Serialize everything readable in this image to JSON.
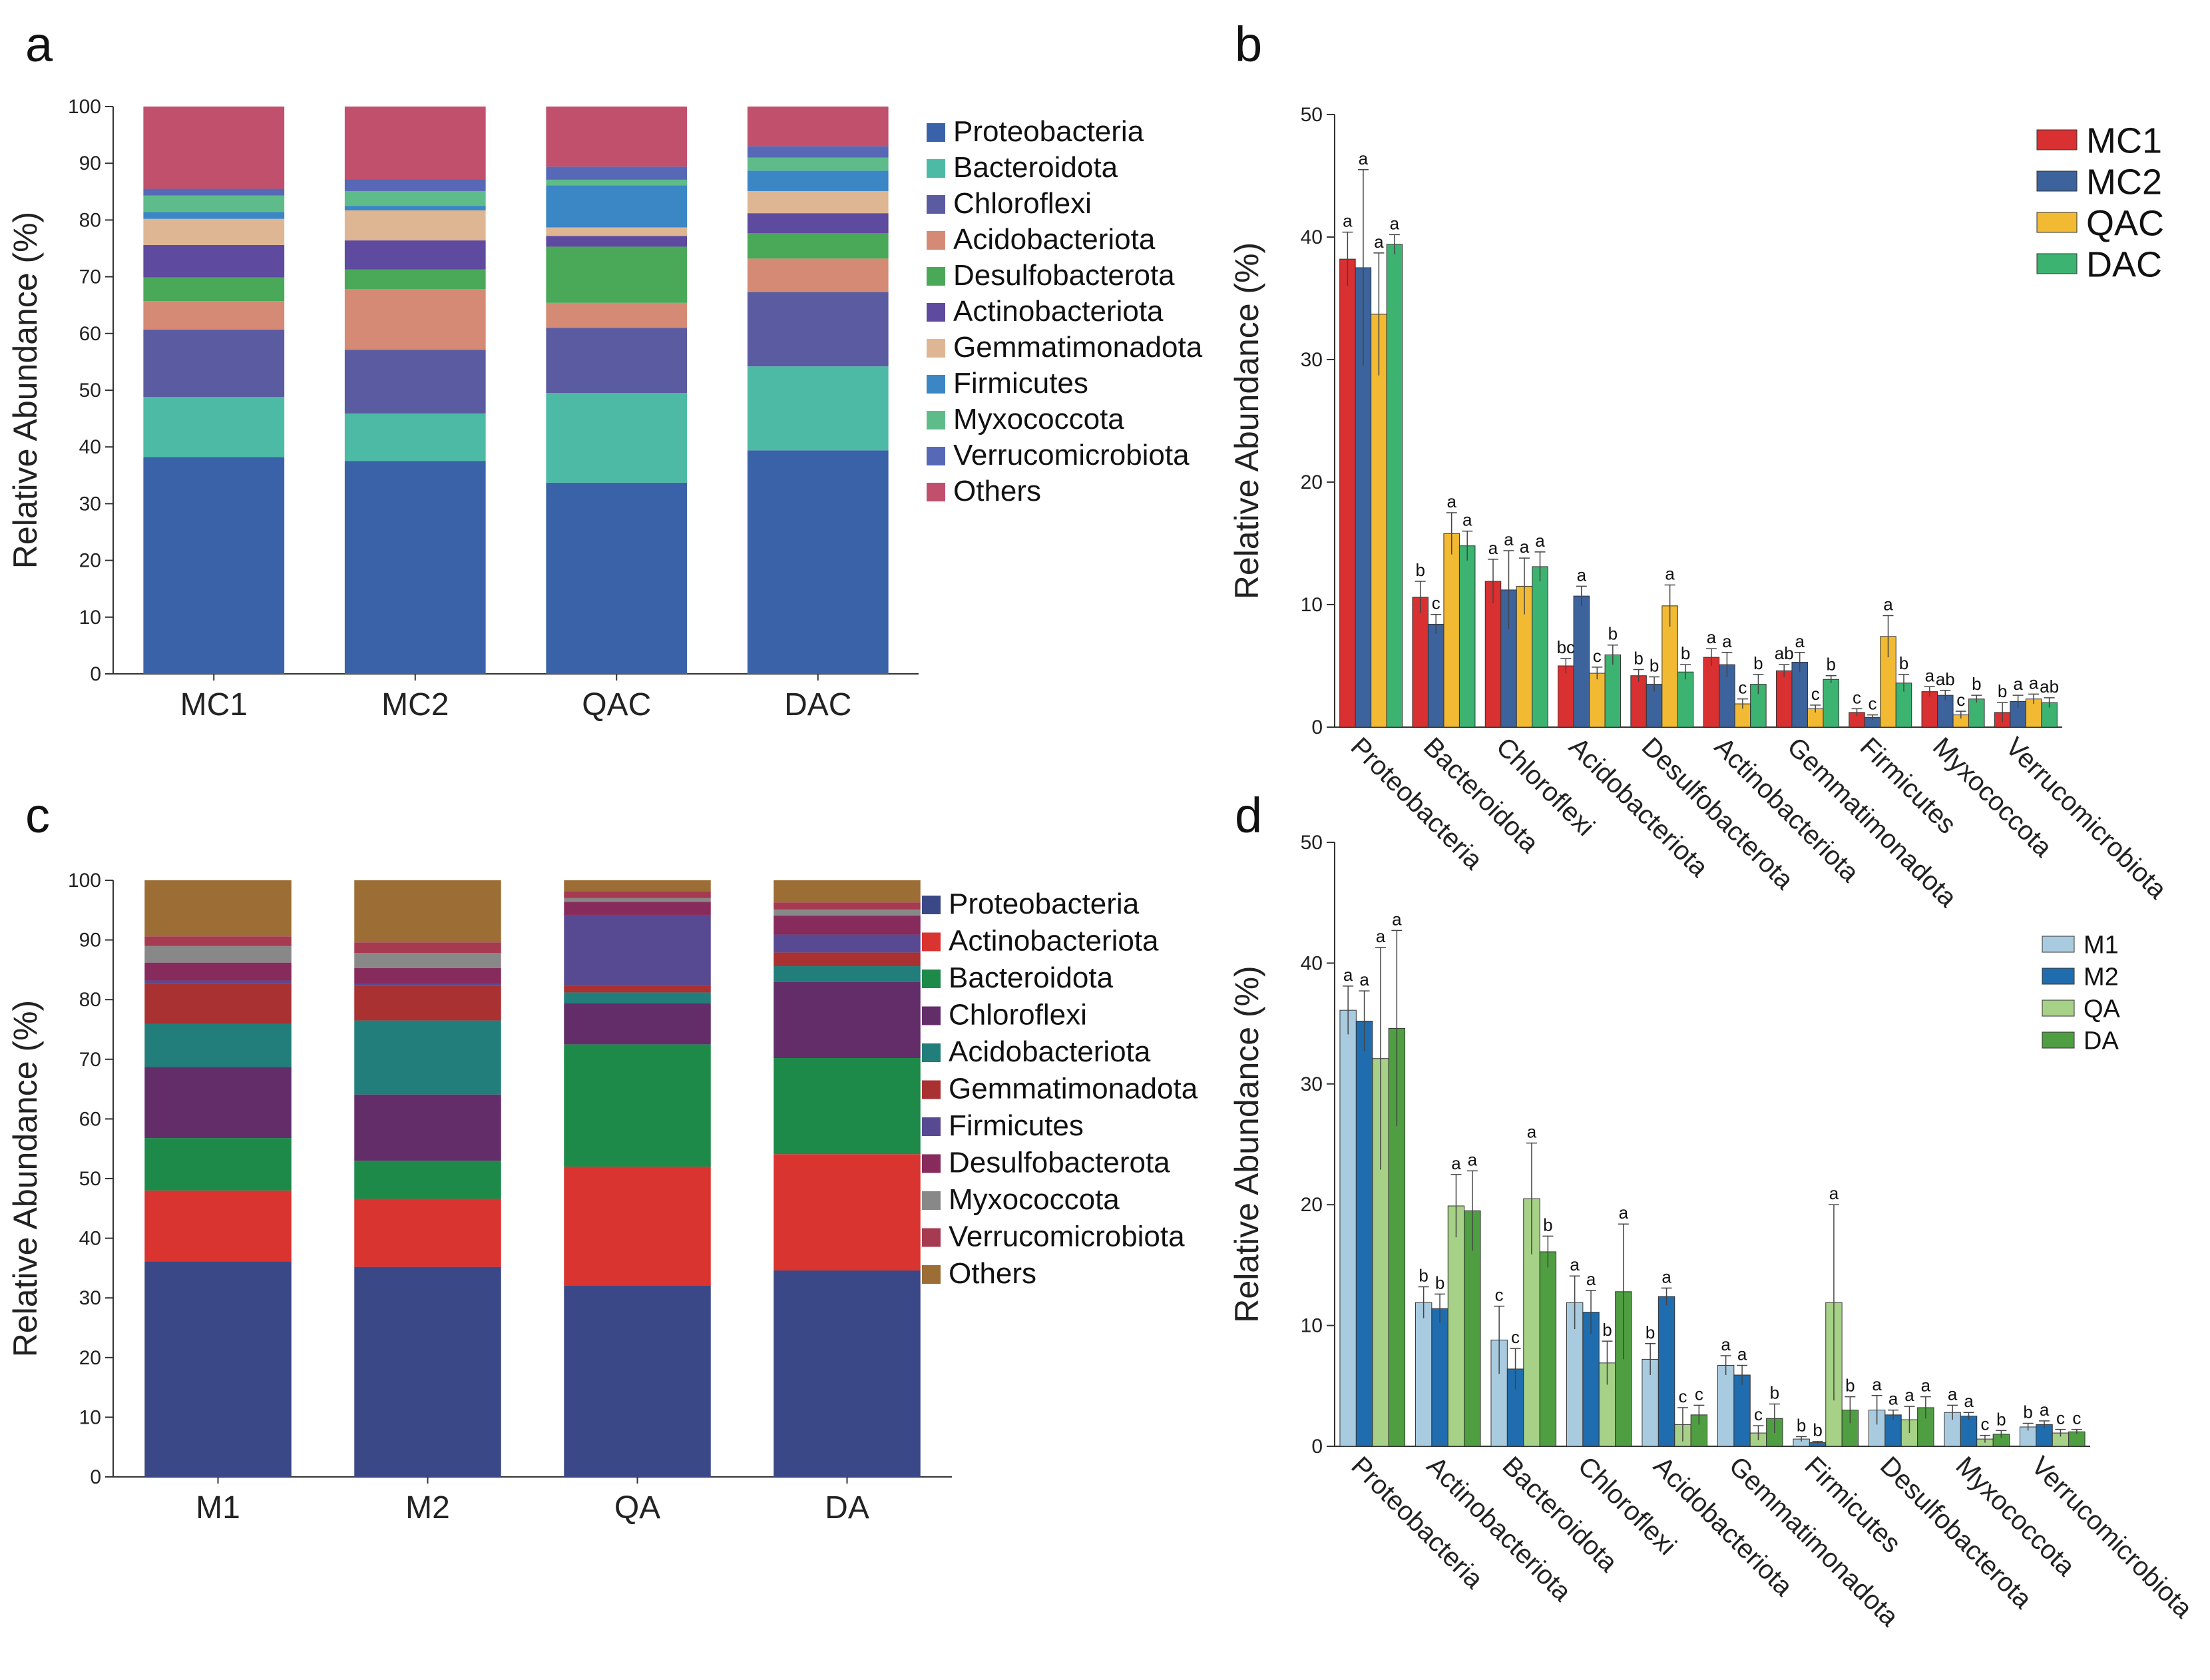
{
  "figure": {
    "panel_labels": [
      "a",
      "b",
      "c",
      "d"
    ]
  },
  "chart_data": [
    {
      "panel": "a",
      "type": "bar",
      "stacked": true,
      "ylabel": "Relative Abundance (%)",
      "ylim": [
        0,
        100
      ],
      "yticks": [
        0,
        10,
        20,
        30,
        40,
        50,
        60,
        70,
        80,
        90,
        100
      ],
      "categories": [
        "MC1",
        "MC2",
        "QAC",
        "DAC"
      ],
      "legend_position": "right",
      "series": [
        {
          "name": "Proteobacteria",
          "color": "#3a62a8",
          "values": [
            38.2,
            37.5,
            33.7,
            39.4
          ]
        },
        {
          "name": "Bacteroidota",
          "color": "#4cbaa5",
          "values": [
            10.6,
            8.4,
            15.8,
            14.8
          ]
        },
        {
          "name": "Chloroflexi",
          "color": "#5a5ba0",
          "values": [
            11.9,
            11.2,
            11.5,
            13.1
          ]
        },
        {
          "name": "Acidobacteriota",
          "color": "#d58a75",
          "values": [
            5.0,
            10.7,
            4.4,
            5.9
          ]
        },
        {
          "name": "Desulfobacterota",
          "color": "#4aa859",
          "values": [
            4.2,
            3.5,
            9.9,
            4.5
          ]
        },
        {
          "name": "Actinobacteriota",
          "color": "#5e4a9e",
          "values": [
            5.7,
            5.1,
            1.9,
            3.5
          ]
        },
        {
          "name": "Gemmatimonadota",
          "color": "#dfb693",
          "values": [
            4.6,
            5.3,
            1.5,
            3.9
          ]
        },
        {
          "name": "Firmicutes",
          "color": "#3b86c5",
          "values": [
            1.2,
            0.8,
            7.4,
            3.6
          ]
        },
        {
          "name": "Myxococcota",
          "color": "#5ebc8a",
          "values": [
            2.9,
            2.6,
            1.0,
            2.3
          ]
        },
        {
          "name": "Verrucomicrobiota",
          "color": "#5668b6",
          "values": [
            1.2,
            2.1,
            2.3,
            2.0
          ]
        },
        {
          "name": "Others",
          "color": "#c0506c",
          "values": [
            14.5,
            12.8,
            10.6,
            7.0
          ]
        }
      ]
    },
    {
      "panel": "b",
      "type": "bar",
      "grouped": true,
      "ylabel": "Relative Abundance (%)",
      "ylim": [
        0,
        50
      ],
      "yticks": [
        0,
        10,
        20,
        30,
        40,
        50
      ],
      "categories": [
        "Proteobacteria",
        "Bacteroidota",
        "Chloroflexi",
        "Acidobacteriota",
        "Desulfobacterota",
        "Actinobacteriota",
        "Gemmatimonadota",
        "Firmicutes",
        "Myxococcota",
        "Verrucomicrobiota"
      ],
      "legend_position": "top-right",
      "series": [
        {
          "name": "MC1",
          "color": "#d93031",
          "values": [
            38.2,
            10.6,
            11.9,
            5.0,
            4.2,
            5.7,
            4.6,
            1.2,
            2.9,
            1.2
          ],
          "errors": [
            2.2,
            1.3,
            1.8,
            0.6,
            0.5,
            0.7,
            0.5,
            0.3,
            0.4,
            0.8
          ],
          "letters": [
            "a",
            "b",
            "a",
            "bc",
            "b",
            "a",
            "ab",
            "c",
            "a",
            "b"
          ]
        },
        {
          "name": "MC2",
          "color": "#3c639b",
          "values": [
            37.5,
            8.4,
            11.2,
            10.7,
            3.5,
            5.1,
            5.3,
            0.8,
            2.6,
            2.1
          ],
          "errors": [
            8.0,
            0.8,
            3.2,
            0.8,
            0.6,
            1.0,
            0.8,
            0.2,
            0.4,
            0.5
          ],
          "letters": [
            "a",
            "c",
            "a",
            "a",
            "b",
            "a",
            "a",
            "c",
            "ab",
            "a"
          ]
        },
        {
          "name": "QAC",
          "color": "#f2b933",
          "values": [
            33.7,
            15.8,
            11.5,
            4.4,
            9.9,
            1.9,
            1.5,
            7.4,
            1.0,
            2.3
          ],
          "errors": [
            5.0,
            1.7,
            2.3,
            0.5,
            1.7,
            0.4,
            0.3,
            1.7,
            0.3,
            0.4
          ],
          "letters": [
            "a",
            "a",
            "a",
            "c",
            "a",
            "c",
            "c",
            "a",
            "c",
            "a"
          ]
        },
        {
          "name": "DAC",
          "color": "#3cb370",
          "values": [
            39.4,
            14.8,
            13.1,
            5.9,
            4.5,
            3.5,
            3.9,
            3.6,
            2.3,
            2.0
          ],
          "errors": [
            0.8,
            1.2,
            1.2,
            0.8,
            0.6,
            0.8,
            0.3,
            0.7,
            0.3,
            0.4
          ],
          "letters": [
            "a",
            "a",
            "a",
            "b",
            "b",
            "b",
            "b",
            "b",
            "b",
            "ab"
          ]
        }
      ]
    },
    {
      "panel": "c",
      "type": "bar",
      "stacked": true,
      "ylabel": "Relative Abundance (%)",
      "ylim": [
        0,
        100
      ],
      "yticks": [
        0,
        10,
        20,
        30,
        40,
        50,
        60,
        70,
        80,
        90,
        100
      ],
      "categories": [
        "M1",
        "M2",
        "QA",
        "DA"
      ],
      "legend_position": "right",
      "series": [
        {
          "name": "Proteobacteria",
          "color": "#3b4887",
          "values": [
            36.1,
            35.2,
            32.1,
            34.6
          ]
        },
        {
          "name": "Actinobacteriota",
          "color": "#d93430",
          "values": [
            11.9,
            11.4,
            19.9,
            19.5
          ]
        },
        {
          "name": "Bacteroidota",
          "color": "#1e8a4a",
          "values": [
            8.8,
            6.4,
            20.5,
            16.1
          ]
        },
        {
          "name": "Chloroflexi",
          "color": "#632d6a",
          "values": [
            11.9,
            11.1,
            6.9,
            12.8
          ]
        },
        {
          "name": "Acidobacteriota",
          "color": "#227e7a",
          "values": [
            7.2,
            12.4,
            1.8,
            2.6
          ]
        },
        {
          "name": "Gemmatimonadota",
          "color": "#a93131",
          "values": [
            6.7,
            5.9,
            1.1,
            2.3
          ]
        },
        {
          "name": "Firmicutes",
          "color": "#574a92",
          "values": [
            0.6,
            0.3,
            11.9,
            3.0
          ]
        },
        {
          "name": "Desulfobacterota",
          "color": "#862b5c",
          "values": [
            3.0,
            2.6,
            2.2,
            3.2
          ]
        },
        {
          "name": "Myxococcota",
          "color": "#888888",
          "values": [
            2.8,
            2.5,
            0.6,
            1.0
          ]
        },
        {
          "name": "Verrucomicrobiota",
          "color": "#a63a51",
          "values": [
            1.6,
            1.8,
            1.1,
            1.2
          ]
        },
        {
          "name": "Others",
          "color": "#9c6e35",
          "values": [
            9.4,
            10.4,
            1.9,
            3.7
          ]
        }
      ]
    },
    {
      "panel": "d",
      "type": "bar",
      "grouped": true,
      "ylabel": "Relative Abundance (%)",
      "ylim": [
        0,
        50
      ],
      "yticks": [
        0,
        10,
        20,
        30,
        40,
        50
      ],
      "categories": [
        "Proteobacteria",
        "Actinobacteriota",
        "Bacteroidota",
        "Chloroflexi",
        "Acidobacteriota",
        "Gemmatimonadota",
        "Firmicutes",
        "Desulfobacterota",
        "Myxococcota",
        "Verrucomicrobiota"
      ],
      "legend_position": "right",
      "series": [
        {
          "name": "M1",
          "color": "#a9cbe0",
          "values": [
            36.1,
            11.9,
            8.8,
            11.9,
            7.2,
            6.7,
            0.6,
            3.0,
            2.8,
            1.6
          ],
          "errors": [
            2.0,
            1.3,
            2.8,
            2.2,
            1.3,
            0.8,
            0.2,
            1.2,
            0.6,
            0.3
          ],
          "letters": [
            "a",
            "b",
            "c",
            "a",
            "b",
            "a",
            "b",
            "a",
            "a",
            "b"
          ]
        },
        {
          "name": "M2",
          "color": "#1f6dae",
          "values": [
            35.2,
            11.4,
            6.4,
            11.1,
            12.4,
            5.9,
            0.3,
            2.6,
            2.5,
            1.8
          ],
          "errors": [
            2.5,
            1.2,
            1.7,
            1.8,
            0.7,
            0.8,
            0.1,
            0.4,
            0.3,
            0.3
          ],
          "letters": [
            "a",
            "b",
            "c",
            "a",
            "a",
            "a",
            "b",
            "a",
            "a",
            "a"
          ]
        },
        {
          "name": "QA",
          "color": "#a6d186",
          "values": [
            32.1,
            19.9,
            20.5,
            6.9,
            1.8,
            1.1,
            11.9,
            2.2,
            0.6,
            1.1
          ],
          "errors": [
            9.2,
            2.6,
            4.6,
            1.8,
            1.4,
            0.6,
            8.1,
            1.1,
            0.3,
            0.3
          ],
          "letters": [
            "a",
            "a",
            "a",
            "b",
            "c",
            "c",
            "a",
            "a",
            "c",
            "c"
          ]
        },
        {
          "name": "DA",
          "color": "#509e42",
          "values": [
            34.6,
            19.5,
            16.1,
            12.8,
            2.6,
            2.3,
            3.0,
            3.2,
            1.0,
            1.2
          ],
          "errors": [
            8.1,
            3.3,
            1.3,
            5.6,
            0.8,
            1.2,
            1.1,
            0.9,
            0.3,
            0.2
          ],
          "letters": [
            "a",
            "a",
            "b",
            "a",
            "c",
            "b",
            "b",
            "a",
            "b",
            "c"
          ]
        }
      ]
    }
  ]
}
